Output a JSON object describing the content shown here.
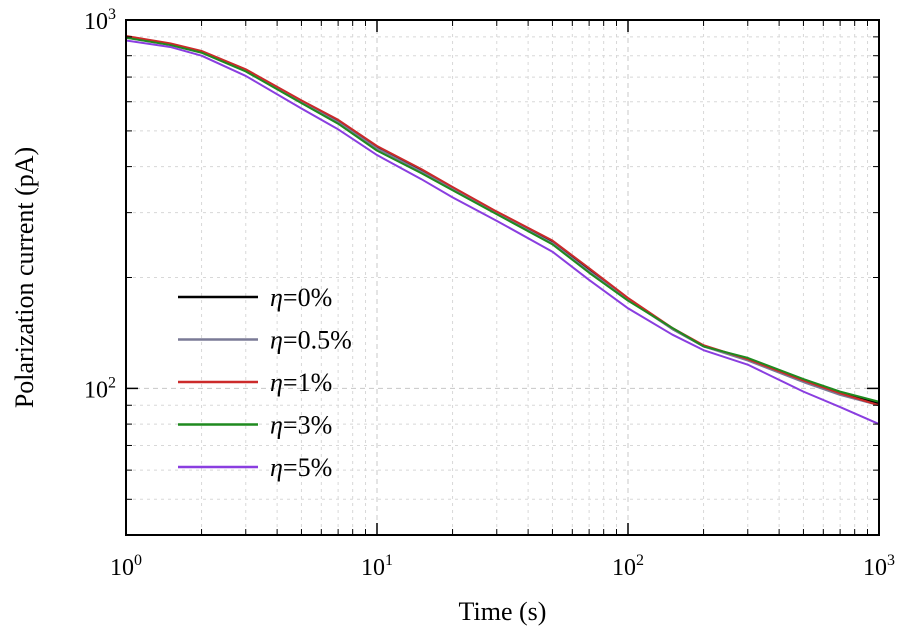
{
  "chart_data": {
    "type": "line",
    "xscale": "log",
    "yscale": "log",
    "xlabel": "Time (s)",
    "ylabel": "Polarization current (pA)",
    "xlim": [
      1,
      1000
    ],
    "ylim": [
      40,
      1000
    ],
    "grid": true,
    "legend_position": "lower-left",
    "xticks": [
      {
        "value": 1,
        "base": "10",
        "exp": "0"
      },
      {
        "value": 10,
        "base": "10",
        "exp": "1"
      },
      {
        "value": 100,
        "base": "10",
        "exp": "2"
      },
      {
        "value": 1000,
        "base": "10",
        "exp": "3"
      }
    ],
    "yticks": [
      {
        "value": 100,
        "base": "10",
        "exp": "2"
      },
      {
        "value": 1000,
        "base": "10",
        "exp": "3"
      }
    ],
    "x": [
      1,
      1.5,
      2,
      3,
      5,
      7,
      10,
      15,
      20,
      30,
      50,
      70,
      100,
      150,
      200,
      300,
      500,
      700,
      1000
    ],
    "series": [
      {
        "name": "η=0%",
        "symbol": "η",
        "suffix": "=0%",
        "color": "#000000",
        "values": [
          900,
          860,
          820,
          730,
          600,
          530,
          450,
          390,
          350,
          300,
          250,
          210,
          175,
          145,
          130,
          120,
          105,
          97,
          91
        ]
      },
      {
        "name": "η=0.5%",
        "symbol": "η",
        "suffix": "=0.5%",
        "color": "#7a7a96",
        "values": [
          895,
          858,
          818,
          728,
          598,
          528,
          448,
          388,
          348,
          299,
          248,
          208,
          174,
          145,
          130,
          119,
          104,
          96,
          90
        ]
      },
      {
        "name": "η=1%",
        "symbol": "η",
        "suffix": "=1%",
        "color": "#cc2a2a",
        "values": [
          905,
          864,
          824,
          735,
          605,
          536,
          455,
          394,
          352,
          302,
          252,
          212,
          176,
          146,
          131,
          120,
          105,
          97,
          90
        ]
      },
      {
        "name": "η=3%",
        "symbol": "η",
        "suffix": "=3%",
        "color": "#1f8a1f",
        "values": [
          895,
          855,
          815,
          725,
          595,
          523,
          442,
          384,
          345,
          297,
          246,
          206,
          173,
          146,
          130,
          121,
          106,
          98,
          92
        ]
      },
      {
        "name": "η=5%",
        "symbol": "η",
        "suffix": "=5%",
        "color": "#8a3ee0",
        "values": [
          880,
          845,
          800,
          705,
          575,
          505,
          430,
          370,
          330,
          285,
          235,
          197,
          165,
          140,
          127,
          116,
          98,
          89,
          80
        ]
      }
    ]
  }
}
